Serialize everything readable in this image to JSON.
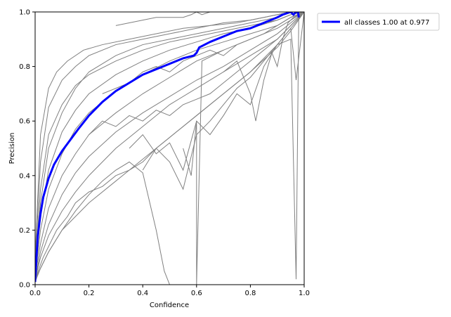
{
  "chart_data": {
    "type": "line",
    "title": "",
    "xlabel": "Confidence",
    "ylabel": "Precision",
    "xlim": [
      0,
      1
    ],
    "ylim": [
      0,
      1
    ],
    "x_ticks": [
      "0.0",
      "0.2",
      "0.4",
      "0.6",
      "0.8",
      "1.0"
    ],
    "y_ticks": [
      "0.0",
      "0.2",
      "0.4",
      "0.6",
      "0.8",
      "1.0"
    ],
    "grid": false,
    "legend_position": "outside-top-right",
    "legend": [
      "all classes 1.00 at 0.977"
    ],
    "colors": {
      "class_series": "#808080",
      "aggregate_series": "#0000ff"
    },
    "series": [
      {
        "name": "all classes 1.00 at 0.977",
        "role": "aggregate",
        "x": [
          0.0,
          0.005,
          0.01,
          0.02,
          0.03,
          0.05,
          0.07,
          0.1,
          0.13,
          0.16,
          0.2,
          0.25,
          0.3,
          0.35,
          0.4,
          0.45,
          0.5,
          0.55,
          0.59,
          0.6,
          0.61,
          0.65,
          0.7,
          0.75,
          0.8,
          0.85,
          0.9,
          0.92,
          0.95,
          0.96,
          0.97,
          0.977,
          0.98
        ],
        "y": [
          0.01,
          0.1,
          0.18,
          0.26,
          0.32,
          0.39,
          0.44,
          0.49,
          0.53,
          0.57,
          0.62,
          0.67,
          0.71,
          0.74,
          0.77,
          0.79,
          0.81,
          0.83,
          0.84,
          0.85,
          0.87,
          0.89,
          0.91,
          0.93,
          0.94,
          0.96,
          0.98,
          0.99,
          1.0,
          0.99,
          1.0,
          1.0,
          0.98
        ]
      },
      {
        "role": "class",
        "x": [
          0,
          0.02,
          0.05,
          0.1,
          0.15,
          0.2,
          0.3,
          0.4,
          0.5,
          0.6,
          0.7,
          0.8,
          0.9,
          0.95,
          1.0
        ],
        "y": [
          0.05,
          0.3,
          0.5,
          0.63,
          0.72,
          0.78,
          0.84,
          0.88,
          0.9,
          0.92,
          0.94,
          0.96,
          0.98,
          1.0,
          1.0
        ]
      },
      {
        "role": "class",
        "x": [
          0,
          0.02,
          0.05,
          0.1,
          0.15,
          0.2,
          0.3,
          0.4,
          0.5,
          0.6,
          0.7,
          0.8,
          0.9,
          0.95,
          1.0
        ],
        "y": [
          0.08,
          0.45,
          0.65,
          0.75,
          0.8,
          0.84,
          0.88,
          0.9,
          0.92,
          0.94,
          0.96,
          0.97,
          0.99,
          1.0,
          1.0
        ]
      },
      {
        "role": "class",
        "x": [
          0,
          0.02,
          0.05,
          0.08,
          0.12,
          0.18,
          0.25,
          0.35,
          0.45,
          0.55,
          0.65,
          0.75,
          0.85,
          0.95,
          1.0
        ],
        "y": [
          0.1,
          0.55,
          0.72,
          0.78,
          0.82,
          0.86,
          0.88,
          0.9,
          0.92,
          0.94,
          0.95,
          0.96,
          0.98,
          1.0,
          1.0
        ]
      },
      {
        "role": "class",
        "x": [
          0,
          0.02,
          0.05,
          0.1,
          0.15,
          0.2,
          0.3,
          0.4,
          0.5,
          0.6,
          0.7,
          0.8,
          0.9,
          0.95,
          1.0
        ],
        "y": [
          0.06,
          0.35,
          0.55,
          0.66,
          0.73,
          0.77,
          0.82,
          0.86,
          0.89,
          0.91,
          0.93,
          0.95,
          0.97,
          0.99,
          1.0
        ]
      },
      {
        "role": "class",
        "x": [
          0,
          0.02,
          0.05,
          0.1,
          0.15,
          0.2,
          0.3,
          0.4,
          0.5,
          0.6,
          0.7,
          0.8,
          0.9,
          0.95,
          1.0
        ],
        "y": [
          0.04,
          0.25,
          0.42,
          0.56,
          0.64,
          0.7,
          0.77,
          0.82,
          0.86,
          0.89,
          0.92,
          0.94,
          0.97,
          0.99,
          1.0
        ]
      },
      {
        "role": "class",
        "x": [
          0,
          0.02,
          0.05,
          0.1,
          0.15,
          0.2,
          0.3,
          0.4,
          0.5,
          0.6,
          0.7,
          0.8,
          0.9,
          0.95,
          1.0
        ],
        "y": [
          0.03,
          0.2,
          0.35,
          0.48,
          0.57,
          0.63,
          0.71,
          0.77,
          0.82,
          0.86,
          0.89,
          0.92,
          0.95,
          0.98,
          1.0
        ]
      },
      {
        "role": "class",
        "x": [
          0,
          0.02,
          0.05,
          0.1,
          0.15,
          0.2,
          0.3,
          0.4,
          0.5,
          0.6,
          0.7,
          0.8,
          0.9,
          0.95,
          1.0
        ],
        "y": [
          0.03,
          0.15,
          0.28,
          0.4,
          0.48,
          0.55,
          0.63,
          0.7,
          0.76,
          0.82,
          0.86,
          0.9,
          0.94,
          0.97,
          1.0
        ]
      },
      {
        "role": "class",
        "x": [
          0,
          0.02,
          0.05,
          0.1,
          0.15,
          0.2,
          0.3,
          0.4,
          0.5,
          0.6,
          0.7,
          0.8,
          0.9,
          0.95,
          1.0
        ],
        "y": [
          0.02,
          0.12,
          0.22,
          0.33,
          0.41,
          0.47,
          0.56,
          0.63,
          0.69,
          0.75,
          0.8,
          0.86,
          0.92,
          0.96,
          1.0
        ]
      },
      {
        "role": "class",
        "x": [
          0,
          0.02,
          0.05,
          0.1,
          0.15,
          0.2,
          0.3,
          0.4,
          0.5,
          0.6,
          0.7,
          0.8,
          0.9,
          0.95,
          1.0
        ],
        "y": [
          0.02,
          0.1,
          0.18,
          0.27,
          0.34,
          0.4,
          0.5,
          0.58,
          0.66,
          0.72,
          0.78,
          0.84,
          0.9,
          0.95,
          1.0
        ]
      },
      {
        "role": "class",
        "x": [
          0,
          0.02,
          0.05,
          0.1,
          0.15,
          0.2,
          0.3,
          0.4,
          0.5,
          0.6,
          0.7,
          0.8,
          0.9,
          0.95,
          1.0
        ],
        "y": [
          0.01,
          0.06,
          0.12,
          0.2,
          0.25,
          0.3,
          0.38,
          0.46,
          0.54,
          0.62,
          0.7,
          0.78,
          0.87,
          0.93,
          1.0
        ]
      },
      {
        "role": "class",
        "x": [
          0,
          0.03,
          0.08,
          0.12,
          0.15,
          0.2,
          0.25,
          0.3,
          0.35,
          0.4,
          0.45,
          0.5,
          0.6,
          0.7,
          0.8,
          0.9,
          1.0
        ],
        "y": [
          0.02,
          0.1,
          0.2,
          0.25,
          0.3,
          0.34,
          0.36,
          0.4,
          0.42,
          0.45,
          0.5,
          0.54,
          0.62,
          0.7,
          0.78,
          0.88,
          1.0
        ]
      },
      {
        "role": "class",
        "x": [
          0,
          0.05,
          0.1,
          0.15,
          0.2,
          0.25,
          0.3,
          0.35,
          0.4,
          0.45,
          0.48,
          0.5
        ],
        "y": [
          0.02,
          0.12,
          0.2,
          0.27,
          0.33,
          0.38,
          0.42,
          0.45,
          0.41,
          0.2,
          0.05,
          0.0
        ]
      },
      {
        "role": "class",
        "x": [
          0.3,
          0.35,
          0.4,
          0.45,
          0.5,
          0.55,
          0.58,
          0.6,
          0.62,
          0.65
        ],
        "y": [
          0.95,
          0.96,
          0.97,
          0.98,
          0.98,
          0.98,
          0.99,
          1.0,
          0.99,
          1.0
        ]
      },
      {
        "role": "class",
        "x": [
          0.55,
          0.58,
          0.6,
          0.6,
          0.62,
          0.7
        ],
        "y": [
          0.5,
          0.4,
          0.6,
          0.0,
          0.82,
          0.86
        ]
      },
      {
        "role": "class",
        "x": [
          0.35,
          0.4,
          0.45,
          0.5,
          0.55,
          0.6,
          0.65,
          0.7,
          0.75,
          0.8,
          0.85,
          0.9,
          0.95,
          0.97,
          0.98
        ],
        "y": [
          0.5,
          0.55,
          0.48,
          0.52,
          0.42,
          0.6,
          0.55,
          0.62,
          0.7,
          0.66,
          0.8,
          0.88,
          0.9,
          0.02,
          1.0
        ]
      },
      {
        "role": "class",
        "x": [
          0.4,
          0.45,
          0.5,
          0.55,
          0.6,
          0.65,
          0.7,
          0.75,
          0.8,
          0.85,
          0.9,
          0.95,
          0.97,
          1.0
        ],
        "y": [
          0.42,
          0.5,
          0.45,
          0.35,
          0.55,
          0.6,
          0.66,
          0.72,
          0.76,
          0.82,
          0.88,
          0.94,
          0.75,
          1.0
        ]
      },
      {
        "role": "class",
        "x": [
          0.7,
          0.75,
          0.8,
          0.82,
          0.85,
          0.88,
          0.9,
          0.92,
          0.94,
          0.96,
          1.0
        ],
        "y": [
          0.78,
          0.82,
          0.7,
          0.6,
          0.75,
          0.85,
          0.8,
          0.9,
          0.96,
          0.98,
          1.0
        ]
      },
      {
        "role": "class",
        "x": [
          0.2,
          0.25,
          0.3,
          0.35,
          0.4,
          0.45,
          0.5,
          0.55,
          0.6,
          0.65,
          0.7,
          0.75,
          0.8,
          0.85,
          0.9,
          0.95,
          1.0
        ],
        "y": [
          0.55,
          0.6,
          0.58,
          0.62,
          0.6,
          0.64,
          0.62,
          0.66,
          0.68,
          0.7,
          0.74,
          0.78,
          0.82,
          0.86,
          0.9,
          0.95,
          1.0
        ]
      },
      {
        "role": "class",
        "x": [
          0.25,
          0.3,
          0.35,
          0.4,
          0.45,
          0.5,
          0.55,
          0.6,
          0.65,
          0.7,
          0.75,
          0.8,
          0.85,
          0.9,
          0.95,
          1.0
        ],
        "y": [
          0.7,
          0.72,
          0.74,
          0.78,
          0.8,
          0.78,
          0.82,
          0.84,
          0.86,
          0.84,
          0.88,
          0.9,
          0.92,
          0.95,
          0.98,
          1.0
        ]
      }
    ]
  }
}
